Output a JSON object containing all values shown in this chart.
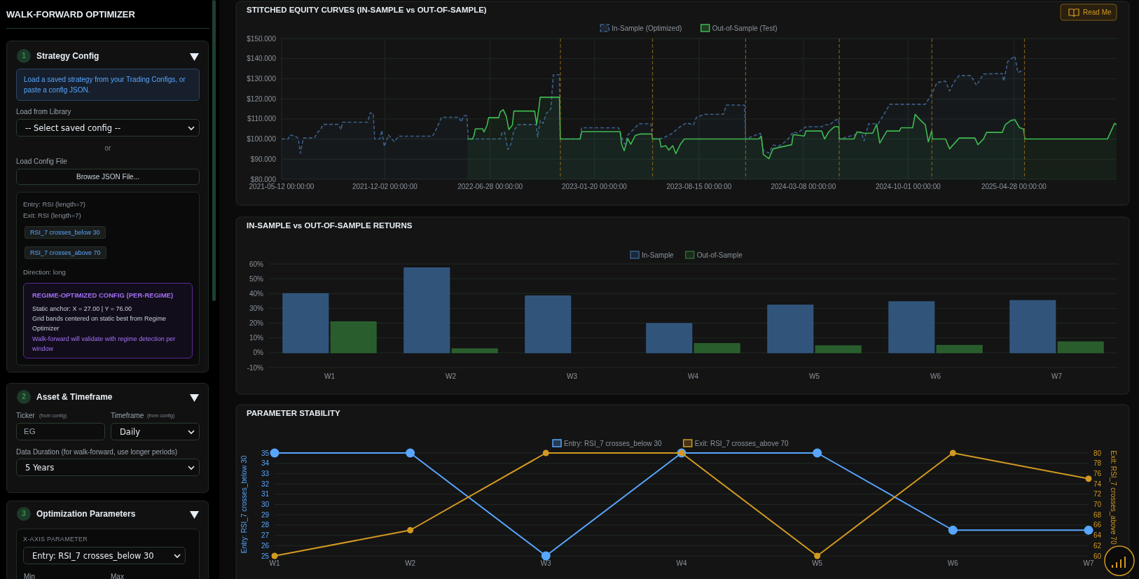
{
  "chart_data": [
    {
      "type": "other",
      "title": "WALK-FORWARD OPTIMIZER",
      "annotations": [
        "1",
        "Strategy Config",
        "Load a saved strategy from your Trading Configs, or paste a config JSON.",
        "Load from Library",
        "-- Select saved config --",
        "or",
        "Load Config File",
        "Browse JSON File...",
        "Entry: RSI (length=7)",
        "Exit: RSI (length=7)",
        "RSI_7 crosses_below 30",
        "RSI_7 crosses_above 70",
        "Direction: long",
        "REGIME-OPTIMIZED CONFIG (PER-REGIME)",
        "Static anchor: X = 27.00 | Y = 76.00",
        "Grid bands centered on static best from Regime Optimizer",
        "Walk-forward will validate with regime detection per window",
        "2",
        "Asset & Timeframe",
        "Ticker",
        "(from config)",
        "Timeframe",
        "(from config)",
        "EG",
        "Daily",
        "Data Duration (for walk-forward, use longer periods)",
        "5 Years",
        "3",
        "Optimization Parameters",
        "X-AXIS PARAMETER",
        "Entry: RSI_7 crosses_below 30",
        "Min",
        "Max"
      ]
    },
    {
      "type": "area",
      "title": "STITCHED EQUITY CURVES (IN-SAMPLE vs OUT-OF-SAMPLE)",
      "annotations": [
        "Read Me"
      ],
      "legend": "top",
      "grid": true,
      "xlim": [
        "2021-05-12",
        "2025-11-17"
      ],
      "xticks": [
        {
          "value": "2021-05-12",
          "label": "2021-05-12 00:00:00"
        },
        {
          "value": "2021-12-02",
          "label": "2021-12-02 00:00:00"
        },
        {
          "value": "2022-06-28",
          "label": "2022-06-28 00:00:00"
        },
        {
          "value": "2023-01-20",
          "label": "2023-01-20 00:00:00"
        },
        {
          "value": "2023-08-15",
          "label": "2023-08-15 00:00:00"
        },
        {
          "value": "2024-03-08",
          "label": "2024-03-08 00:00:00"
        },
        {
          "value": "2024-10-01",
          "label": "2024-10-01 00:00:00"
        },
        {
          "value": "2025-04-28",
          "label": "2025-04-28 00:00:00"
        }
      ],
      "ylim": [
        80,
        150
      ],
      "yticks": [
        {
          "value": 80,
          "label": "$80.000"
        },
        {
          "value": 90,
          "label": "$90.000"
        },
        {
          "value": 100,
          "label": "$100.000"
        },
        {
          "value": 110,
          "label": "$110.000"
        },
        {
          "value": 120,
          "label": "$120.000"
        },
        {
          "value": 130,
          "label": "$130.000"
        },
        {
          "value": 140,
          "label": "$140.000"
        },
        {
          "value": 150,
          "label": "$150.000"
        }
      ],
      "ref_lines": [
        {
          "axis": "x",
          "value": "2022-11-14",
          "color": "#7a5c1e",
          "line_style": "dashed"
        },
        {
          "axis": "x",
          "value": "2023-05-15",
          "color": "#7a5c1e",
          "line_style": "dashed"
        },
        {
          "axis": "x",
          "value": "2023-11-15",
          "color": "#7a5c1e",
          "line_style": "dashed"
        },
        {
          "axis": "x",
          "value": "2024-05-18",
          "color": "#7a5c1e",
          "line_style": "dashed"
        },
        {
          "axis": "x",
          "value": "2024-11-17",
          "color": "#7a5c1e",
          "line_style": "dashed"
        },
        {
          "axis": "x",
          "value": "2025-05-19",
          "color": "#7a5c1e",
          "line_style": "dashed"
        }
      ],
      "series": [
        {
          "name": "In-Sample (Optimized)",
          "color": "#3d5f8a",
          "type": "area",
          "line_style": "dashed",
          "x": [
            "2021-05-12",
            "2021-05-25",
            "2021-05-28",
            "2021-06-08",
            "2021-06-14",
            "2021-06-18",
            "2021-06-24",
            "2021-07-16",
            "2021-07-21",
            "2021-07-28",
            "2021-08-02",
            "2021-09-01",
            "2021-09-07",
            "2021-09-09",
            "2021-10-29",
            "2021-11-03",
            "2021-11-09",
            "2021-11-12",
            "2021-11-22",
            "2021-11-26",
            "2021-12-01",
            "2021-12-09",
            "2021-12-21",
            "2021-12-29",
            "2022-03-06",
            "2022-03-12",
            "2022-03-24",
            "2022-04-28",
            "2022-05-02",
            "2022-05-07",
            "2022-05-13",
            "2022-05-16",
            "2022-07-18",
            "2022-07-22",
            "2022-07-27",
            "2022-08-02",
            "2022-08-08",
            "2022-08-14",
            "2022-08-23",
            "2022-09-27",
            "2022-09-30",
            "2022-10-05",
            "2022-10-11",
            "2022-10-17",
            "2022-10-26",
            "2022-10-31",
            "2022-11-12",
            "2022-11-13",
            "2022-12-23",
            "2022-12-26",
            "2023-03-09",
            "2023-03-15",
            "2023-03-21",
            "2023-03-27",
            "2023-04-07",
            "2023-04-18",
            "2023-05-12",
            "2023-05-15",
            "2023-06-04",
            "2023-06-21",
            "2023-07-09",
            "2023-07-21",
            "2023-08-04",
            "2023-08-10",
            "2023-08-26",
            "2023-10-02",
            "2023-10-08",
            "2023-11-13",
            "2023-11-15",
            "2023-12-14",
            "2023-12-20",
            "2023-12-31",
            "2024-01-08",
            "2024-01-20",
            "2024-02-05",
            "2024-02-17",
            "2024-02-25",
            "2024-03-13",
            "2024-04-13",
            "2024-04-21",
            "2024-04-30",
            "2024-05-08",
            "2024-05-17",
            "2024-05-18",
            "2024-06-19",
            "2024-06-30",
            "2024-07-06",
            "2024-07-15",
            "2024-08-03",
            "2024-08-26",
            "2024-11-04",
            "2024-11-10",
            "2024-11-17",
            "2024-11-27",
            "2024-12-14",
            "2024-12-22",
            "2024-12-30",
            "2025-01-10",
            "2025-02-02",
            "2025-02-13",
            "2025-02-27",
            "2025-04-05",
            "2025-04-08",
            "2025-04-16",
            "2025-04-30",
            "2025-05-06",
            "2025-05-17"
          ],
          "values": [
            100,
            100,
            102,
            101.5,
            100.3,
            93,
            100.5,
            100.6,
            103,
            104.7,
            107.3,
            107.3,
            104.7,
            108.4,
            108.4,
            113,
            112.7,
            100,
            100,
            104.3,
            96.2,
            102,
            98.6,
            101.4,
            101.4,
            104,
            110.8,
            110.8,
            108.4,
            111.6,
            111.6,
            100,
            100,
            103.5,
            103.2,
            94.8,
            97.3,
            104.3,
            107.2,
            107.2,
            101,
            109.2,
            107.8,
            112.7,
            114.9,
            132,
            132,
            100,
            100,
            105.6,
            105.6,
            101,
            97.4,
            102,
            104.7,
            107.6,
            107.6,
            100,
            100.4,
            102.5,
            106.2,
            108,
            107.1,
            110.9,
            112.3,
            112.3,
            116.9,
            116.9,
            100,
            102.9,
            94.4,
            93,
            97,
            96.5,
            99.4,
            103.6,
            102.9,
            106.1,
            106.1,
            107.1,
            107.1,
            109.2,
            109.9,
            100,
            102.2,
            103.6,
            99.1,
            107.6,
            107.6,
            117.3,
            117.3,
            119.7,
            122.5,
            128.1,
            128.8,
            123.9,
            128.1,
            131.6,
            131.6,
            126.7,
            132.3,
            132.6,
            128.8,
            138.6,
            141.2,
            133,
            134.4
          ]
        },
        {
          "name": "Out-of-Sample (Test)",
          "color": "#3fb950",
          "type": "area",
          "line_style": "solid",
          "x": [
            "2022-05-14",
            "2022-05-24",
            "2022-05-27",
            "2022-05-30",
            "2022-06-13",
            "2022-06-16",
            "2022-06-22",
            "2022-06-25",
            "2022-07-15",
            "2022-07-18",
            "2022-07-24",
            "2022-07-30",
            "2022-08-04",
            "2022-08-11",
            "2022-08-14",
            "2022-09-24",
            "2022-09-28",
            "2022-10-03",
            "2022-10-05",
            "2022-11-12",
            "2022-11-14",
            "2022-12-23",
            "2022-12-26",
            "2023-03-12",
            "2023-03-15",
            "2023-03-20",
            "2023-03-27",
            "2023-04-02",
            "2023-04-11",
            "2023-04-20",
            "2023-05-14",
            "2023-05-15",
            "2023-05-29",
            "2023-06-01",
            "2023-06-10",
            "2023-06-16",
            "2023-06-24",
            "2023-06-30",
            "2023-07-09",
            "2023-07-17",
            "2023-12-11",
            "2023-12-16",
            "2023-12-20",
            "2023-12-31",
            "2024-01-08",
            "2024-01-20",
            "2024-02-14",
            "2024-02-17",
            "2024-03-10",
            "2024-03-13",
            "2024-04-13",
            "2024-04-19",
            "2024-04-27",
            "2024-05-08",
            "2024-05-17",
            "2024-05-18",
            "2024-06-16",
            "2024-06-22",
            "2024-07-06",
            "2024-07-23",
            "2024-07-31",
            "2024-08-06",
            "2024-08-20",
            "2024-09-14",
            "2024-09-17",
            "2024-10-10",
            "2024-10-15",
            "2024-10-26",
            "2024-11-04",
            "2024-11-10",
            "2024-11-17",
            "2024-11-18",
            "2024-12-14",
            "2024-12-22",
            "2025-01-10",
            "2025-02-10",
            "2025-02-16",
            "2025-02-27",
            "2025-03-05",
            "2025-04-05",
            "2025-04-11",
            "2025-04-22",
            "2025-04-30",
            "2025-05-09",
            "2025-05-17",
            "2025-05-20",
            "2025-10-30",
            "2025-11-13",
            "2025-11-17"
          ],
          "values": [
            100,
            100,
            101.6,
            105.1,
            105.1,
            103.5,
            106.9,
            110.6,
            110.6,
            113.5,
            114.6,
            111.3,
            104.7,
            106.9,
            113.9,
            113.9,
            107.3,
            116.4,
            120.8,
            120.8,
            100,
            100,
            103.7,
            103.7,
            97.4,
            94.2,
            100.3,
            97.4,
            101.8,
            102.5,
            102.5,
            100,
            100,
            96,
            96.7,
            94.5,
            96.7,
            92.7,
            97.4,
            100,
            100,
            101.5,
            92.3,
            90.2,
            95.1,
            95.8,
            97.2,
            102.2,
            101.5,
            104,
            104,
            100,
            103.5,
            106.1,
            106.1,
            100,
            100,
            103.6,
            102.9,
            102.9,
            107.3,
            98,
            104,
            104,
            105.6,
            105.6,
            112.3,
            109.2,
            107.1,
            98.6,
            104.3,
            100,
            100,
            95.1,
            100.5,
            100.5,
            97.2,
            100,
            103.3,
            103.3,
            107.1,
            109.2,
            109.6,
            105.7,
            105,
            100,
            100,
            107.8,
            107.1
          ]
        }
      ]
    },
    {
      "type": "bar",
      "title": "IN-SAMPLE vs OUT-OF-SAMPLE RETURNS",
      "legend": "top",
      "grid": "y",
      "categories": [
        "W1",
        "W2",
        "W3",
        "W4",
        "W5",
        "W6",
        "W7"
      ],
      "ylim": [
        -10,
        60
      ],
      "yticks": [
        {
          "value": -10,
          "label": "-10%"
        },
        {
          "value": 0,
          "label": "0%"
        },
        {
          "value": 10,
          "label": "10%"
        },
        {
          "value": 20,
          "label": "20%"
        },
        {
          "value": 30,
          "label": "30%"
        },
        {
          "value": 40,
          "label": "40%"
        },
        {
          "value": 50,
          "label": "50%"
        },
        {
          "value": 60,
          "label": "60%"
        }
      ],
      "series": [
        {
          "name": "In-Sample",
          "color": "#365f8c",
          "values": [
            40,
            57.4,
            38.4,
            19.8,
            32.2,
            34.5,
            35.3
          ]
        },
        {
          "name": "Out-of-Sample",
          "color": "#2d6a31",
          "values": [
            20.9,
            2.7,
            0,
            6.2,
            4.7,
            5,
            7.4
          ]
        }
      ]
    },
    {
      "type": "line",
      "title": "PARAMETER STABILITY",
      "legend": "top",
      "grid": "y",
      "marker": "circle",
      "categories": [
        "W1",
        "W2",
        "W3",
        "W4",
        "W5",
        "W6",
        "W7"
      ],
      "ylabel": "Entry: RSI_7 crosses_below 30",
      "y2label": "Exit: RSI_7 crosses_above 70",
      "ylim": [
        25,
        35
      ],
      "yticks": [
        25,
        26,
        27,
        28,
        29,
        30,
        31,
        32,
        33,
        34,
        35
      ],
      "y2lim": [
        60,
        80
      ],
      "y2ticks": [
        60,
        62,
        64,
        66,
        68,
        70,
        72,
        74,
        76,
        78,
        80
      ],
      "series": [
        {
          "name": "Entry: RSI_7 crosses_below 30",
          "color": "#58a6ff",
          "values": [
            35,
            35,
            25,
            35,
            35,
            27.5,
            27.5
          ]
        },
        {
          "name": "Exit: RSI_7 crosses_above 70",
          "color": "#d29922",
          "axis": "y2",
          "values": [
            60,
            65,
            80,
            80,
            60,
            80,
            75
          ]
        }
      ]
    }
  ]
}
